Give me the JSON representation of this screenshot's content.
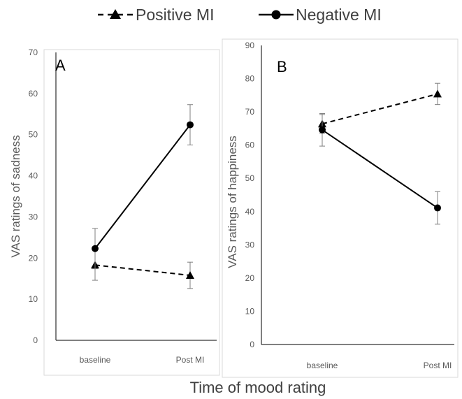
{
  "legend": {
    "positive_label": "Positive MI",
    "negative_label": "Negative MI"
  },
  "x_axis_title": "Time of mood rating",
  "chart_data": [
    {
      "type": "line",
      "panel_label": "A",
      "categories": [
        "baseline",
        "Post MI"
      ],
      "ylabel": "VAS ratings of sadness",
      "ylim": [
        0,
        70
      ],
      "yticks": [
        0,
        10,
        20,
        30,
        40,
        50,
        60,
        70
      ],
      "grid": false,
      "series": [
        {
          "name": "Positive MI",
          "values": [
            18.3,
            15.8
          ],
          "errors": [
            3.7,
            3.2
          ],
          "marker": "triangle",
          "dash": true
        },
        {
          "name": "Negative MI",
          "values": [
            22.3,
            52.4
          ],
          "errors": [
            4.9,
            4.9
          ],
          "marker": "circle",
          "dash": false
        }
      ]
    },
    {
      "type": "line",
      "panel_label": "B",
      "categories": [
        "baseline",
        "Post MI"
      ],
      "ylabel": "VAS ratings of happiness",
      "ylim": [
        0,
        90
      ],
      "yticks": [
        0,
        10,
        20,
        30,
        40,
        50,
        60,
        70,
        80,
        90
      ],
      "grid": false,
      "series": [
        {
          "name": "Positive MI",
          "values": [
            66.4,
            75.4
          ],
          "errors": [
            2.8,
            3.2
          ],
          "marker": "triangle",
          "dash": true
        },
        {
          "name": "Negative MI",
          "values": [
            64.6,
            41.1
          ],
          "errors": [
            4.9,
            4.9
          ],
          "marker": "circle",
          "dash": false
        }
      ]
    }
  ]
}
